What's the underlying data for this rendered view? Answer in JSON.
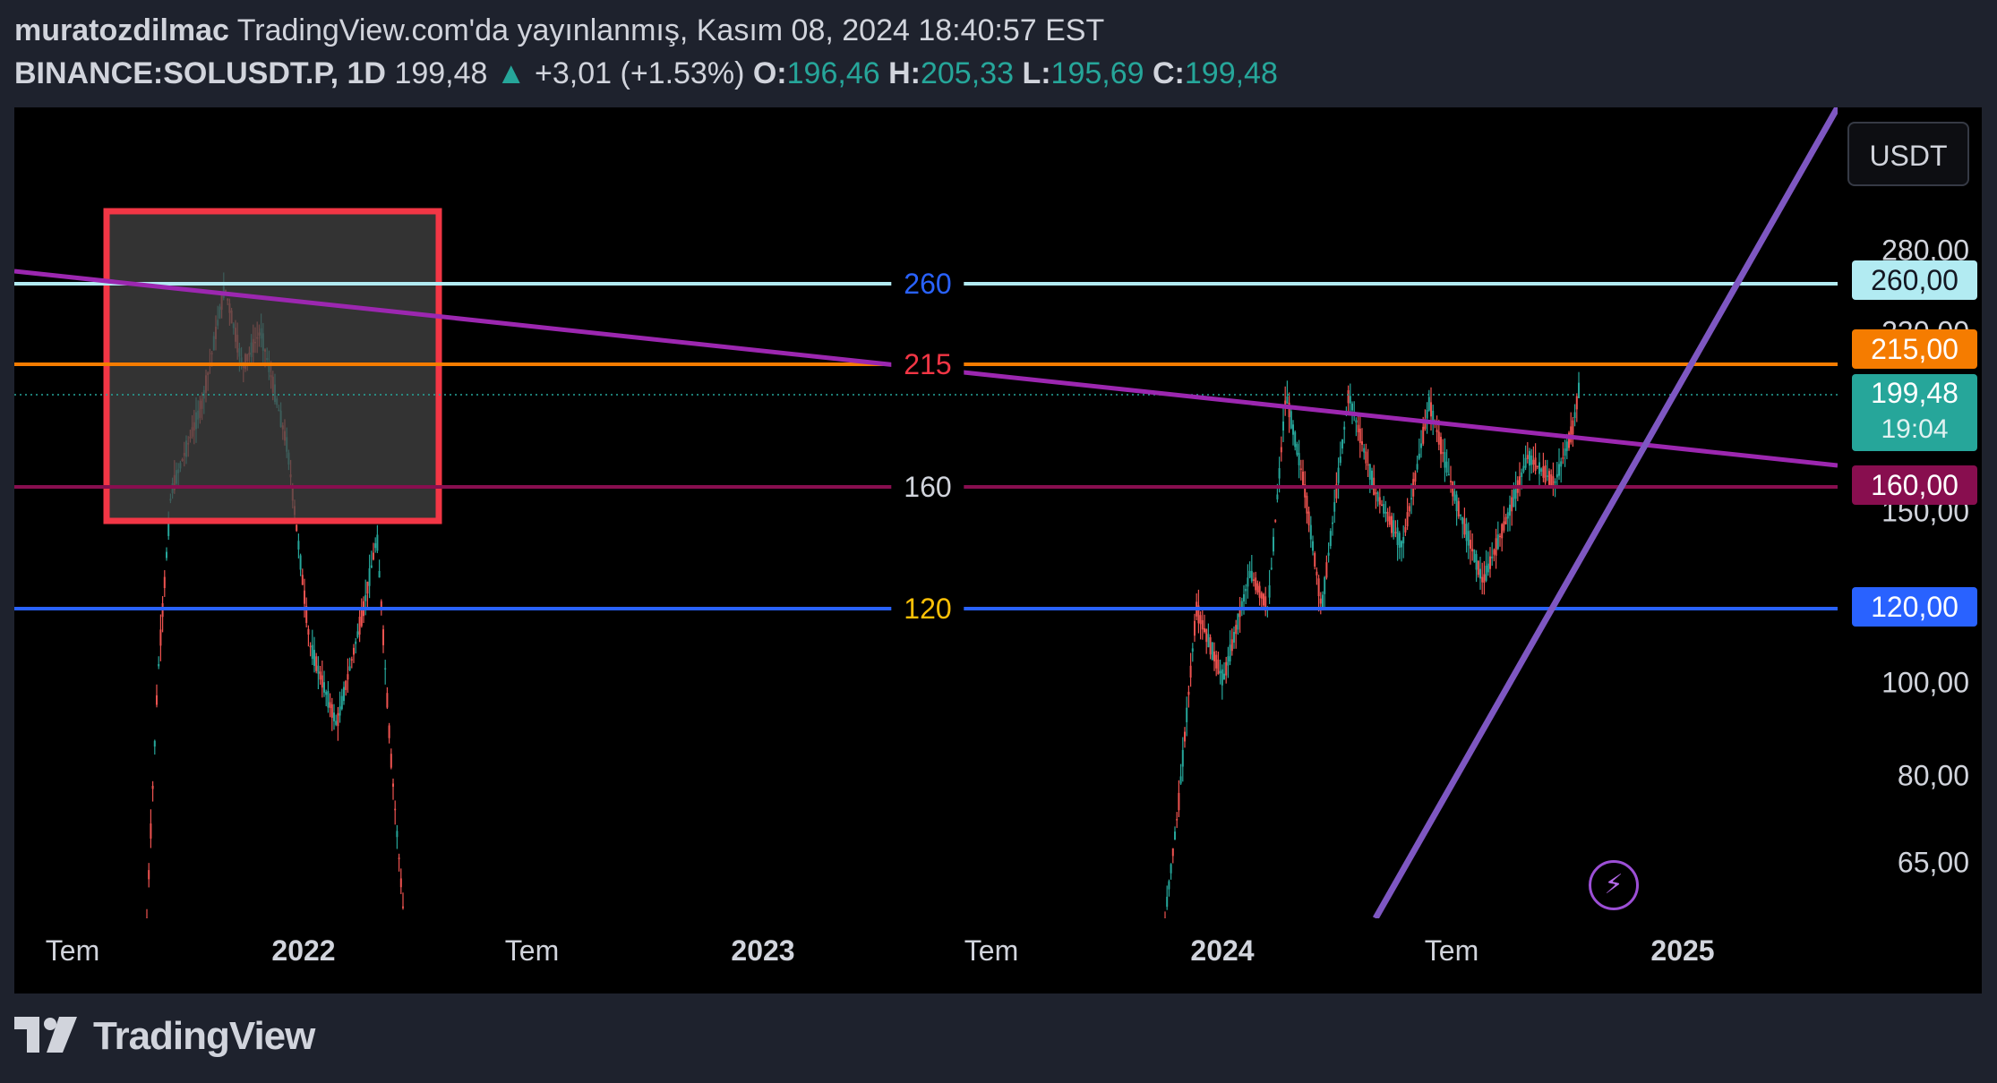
{
  "header": {
    "author": "muratozdilmac",
    "published": " TradingView.com'da yayınlanmış, Kasım 08, 2024 18:40:57 EST",
    "symbol": "BINANCE:SOLUSDT.P, 1D",
    "last_price": "199,48",
    "change": "+3,01 (+1.53%)",
    "open_label": "O:",
    "open": "196,46",
    "high_label": "H:",
    "high": "205,33",
    "low_label": "L:",
    "low": "195,69",
    "close_label": "C:",
    "close": "199,48"
  },
  "currency": "USDT",
  "price_axis": {
    "ticks": [
      "280,00",
      "230,00",
      "150,00",
      "100,00",
      "80,00",
      "65,00"
    ],
    "labels": {
      "l260": "260,00",
      "l215": "215,00",
      "current": "199,48",
      "countdown": "19:04",
      "l160": "160,00",
      "l120": "120,00"
    }
  },
  "levels": {
    "l260": "260",
    "l215": "215",
    "l160": "160",
    "l120": "120"
  },
  "time_axis": [
    "Tem",
    "2022",
    "Tem",
    "2023",
    "Tem",
    "2024",
    "Tem",
    "2025"
  ],
  "colors": {
    "l260": "#b2ebf2",
    "l215": "#f57c00",
    "l160": "#880e4f",
    "l120": "#2962ff",
    "up": "#26a69a",
    "down": "#ef5350",
    "trendline": "#9c27b0",
    "support": "#7e57c2",
    "box": "#f23645"
  },
  "logo": "TradingView"
}
